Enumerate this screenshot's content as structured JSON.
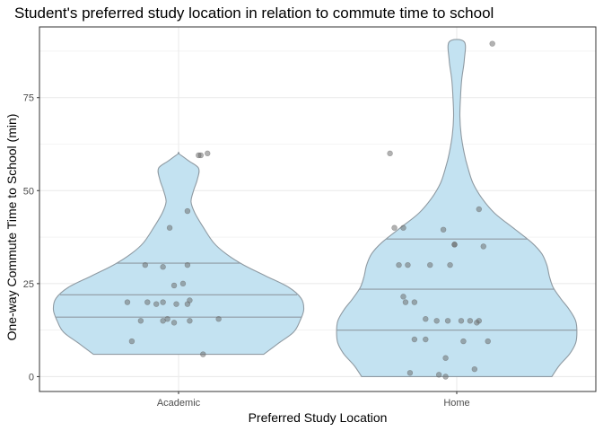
{
  "chart_data": {
    "type": "violin",
    "title": "Student's preferred study location in relation to commute time to school",
    "xlabel": "Preferred Study Location",
    "ylabel": "One-way Commute Time to School (min)",
    "categories": [
      "Academic",
      "Home"
    ],
    "yticks": [
      0,
      25,
      50,
      75
    ],
    "ylim": [
      -4,
      94
    ],
    "grid": true,
    "colors": {
      "violin_fill": "#c3e2f1",
      "violin_stroke": "#8f9aa2",
      "point": "#666666",
      "grid": "#ebebeb",
      "panel_border": "#333333"
    },
    "violins": [
      {
        "category": "Academic",
        "min": 6,
        "max": 60,
        "quantiles": [
          16,
          22,
          30.5
        ],
        "profile": [
          [
            6,
            0.68
          ],
          [
            9,
            0.8
          ],
          [
            12,
            0.92
          ],
          [
            15,
            0.97
          ],
          [
            18,
            1.0
          ],
          [
            21,
            0.98
          ],
          [
            24,
            0.88
          ],
          [
            27,
            0.7
          ],
          [
            30,
            0.52
          ],
          [
            33,
            0.38
          ],
          [
            36,
            0.28
          ],
          [
            40,
            0.2
          ],
          [
            44,
            0.13
          ],
          [
            47,
            0.1
          ],
          [
            50,
            0.12
          ],
          [
            53,
            0.15
          ],
          [
            56,
            0.16
          ],
          [
            58,
            0.08
          ],
          [
            60,
            0.0
          ]
        ],
        "points": [
          [
            60,
            59.5
          ],
          [
            59,
            59.5
          ],
          [
            63,
            60
          ],
          [
            54,
            44.5
          ],
          [
            46,
            40
          ],
          [
            35,
            30
          ],
          [
            43,
            29.5
          ],
          [
            54,
            30
          ],
          [
            52,
            25
          ],
          [
            48,
            24.5
          ],
          [
            55,
            20.5
          ],
          [
            43,
            20
          ],
          [
            40,
            19.5
          ],
          [
            49,
            19.5
          ],
          [
            27,
            20
          ],
          [
            36,
            20
          ],
          [
            54,
            19.5
          ],
          [
            45,
            15.5
          ],
          [
            33,
            15
          ],
          [
            43,
            15
          ],
          [
            55,
            15
          ],
          [
            48,
            14.5
          ],
          [
            68,
            15.5
          ],
          [
            29,
            9.5
          ],
          [
            61,
            6
          ]
        ]
      },
      {
        "category": "Home",
        "min": 0,
        "max": 90,
        "quantiles": [
          12.5,
          23.5,
          37
        ],
        "profile": [
          [
            0,
            0.76
          ],
          [
            3,
            0.82
          ],
          [
            6,
            0.9
          ],
          [
            9,
            0.95
          ],
          [
            12,
            0.96
          ],
          [
            15,
            0.95
          ],
          [
            18,
            0.9
          ],
          [
            21,
            0.83
          ],
          [
            24,
            0.77
          ],
          [
            27,
            0.74
          ],
          [
            30,
            0.72
          ],
          [
            33,
            0.68
          ],
          [
            36,
            0.6
          ],
          [
            40,
            0.45
          ],
          [
            44,
            0.3
          ],
          [
            48,
            0.2
          ],
          [
            52,
            0.13
          ],
          [
            56,
            0.09
          ],
          [
            60,
            0.06
          ],
          [
            65,
            0.035
          ],
          [
            70,
            0.025
          ],
          [
            75,
            0.03
          ],
          [
            80,
            0.04
          ],
          [
            85,
            0.06
          ],
          [
            90,
            0.06
          ]
        ],
        "points": [
          [
            66,
            89.5
          ],
          [
            20,
            60
          ],
          [
            60,
            45
          ],
          [
            22,
            40
          ],
          [
            26,
            40
          ],
          [
            44,
            39.5
          ],
          [
            49,
            35.5
          ],
          [
            62,
            35
          ],
          [
            49,
            35.5
          ],
          [
            28,
            30
          ],
          [
            47,
            30
          ],
          [
            24,
            30
          ],
          [
            38,
            30
          ],
          [
            26,
            21.5
          ],
          [
            27,
            20
          ],
          [
            31,
            20
          ],
          [
            36,
            15.5
          ],
          [
            46,
            15
          ],
          [
            41,
            15
          ],
          [
            60,
            15
          ],
          [
            52,
            15
          ],
          [
            56,
            15
          ],
          [
            31,
            10
          ],
          [
            36,
            10
          ],
          [
            59,
            14.5
          ],
          [
            53,
            9.5
          ],
          [
            64,
            9.5
          ],
          [
            45,
            5
          ],
          [
            42,
            0.5
          ],
          [
            29,
            1
          ],
          [
            45,
            0
          ],
          [
            58,
            2
          ]
        ]
      }
    ]
  }
}
